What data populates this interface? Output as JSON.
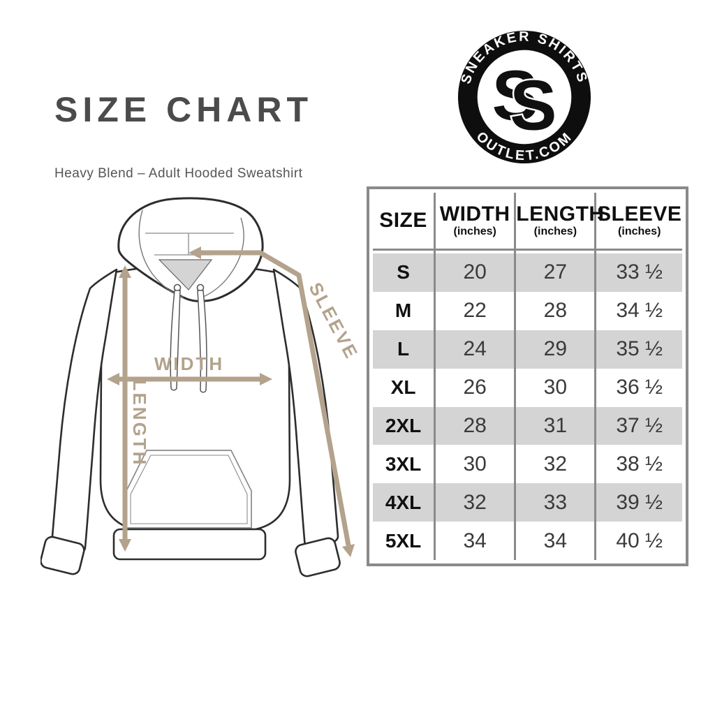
{
  "header": {
    "title": "SIZE CHART",
    "subtitle": "Heavy Blend – Adult Hooded Sweatshirt"
  },
  "logo": {
    "top_text": "SNEAKER SHIRTS",
    "bottom_text": "OUTLET.COM",
    "monogram_s1": "S",
    "monogram_s2": "S",
    "bg_color": "#0e0e0e",
    "text_color": "#ffffff"
  },
  "diagram": {
    "labels": {
      "width": "WIDTH",
      "length": "LENGTH",
      "sleeve": "SLEEVE"
    },
    "arrow_color": "#b3a28c",
    "outline_color": "#2d2d2d"
  },
  "table": {
    "border_color": "#8a8a8a",
    "stripe_color": "#d4d4d4",
    "columns": [
      {
        "label": "SIZE",
        "sub": ""
      },
      {
        "label": "WIDTH",
        "sub": "(inches)"
      },
      {
        "label": "LENGTH",
        "sub": "(inches)"
      },
      {
        "label": "SLEEVE",
        "sub": "(inches)"
      }
    ],
    "rows": [
      {
        "size": "S",
        "width": "20",
        "length": "27",
        "sleeve": "33 ½"
      },
      {
        "size": "M",
        "width": "22",
        "length": "28",
        "sleeve": "34 ½"
      },
      {
        "size": "L",
        "width": "24",
        "length": "29",
        "sleeve": "35 ½"
      },
      {
        "size": "XL",
        "width": "26",
        "length": "30",
        "sleeve": "36 ½"
      },
      {
        "size": "2XL",
        "width": "28",
        "length": "31",
        "sleeve": "37 ½"
      },
      {
        "size": "3XL",
        "width": "30",
        "length": "32",
        "sleeve": "38 ½"
      },
      {
        "size": "4XL",
        "width": "32",
        "length": "33",
        "sleeve": "39 ½"
      },
      {
        "size": "5XL",
        "width": "34",
        "length": "34",
        "sleeve": "40 ½"
      }
    ]
  },
  "chart_data": {
    "type": "table",
    "title": "SIZE CHART",
    "subtitle": "Heavy Blend – Adult Hooded Sweatshirt",
    "columns": [
      "SIZE",
      "WIDTH (inches)",
      "LENGTH (inches)",
      "SLEEVE (inches)"
    ],
    "rows": [
      [
        "S",
        20,
        27,
        33.5
      ],
      [
        "M",
        22,
        28,
        34.5
      ],
      [
        "L",
        24,
        29,
        35.5
      ],
      [
        "XL",
        26,
        30,
        36.5
      ],
      [
        "2XL",
        28,
        31,
        37.5
      ],
      [
        "3XL",
        30,
        32,
        38.5
      ],
      [
        "4XL",
        32,
        33,
        39.5
      ],
      [
        "5XL",
        34,
        34,
        40.5
      ]
    ]
  }
}
